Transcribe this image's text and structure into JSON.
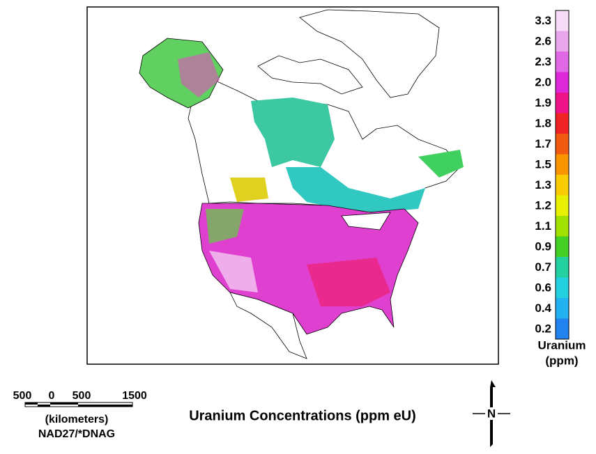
{
  "legend": {
    "title": "Uranium",
    "unit": "(ppm)",
    "bands": [
      {
        "label": "3.3",
        "color": "#f6dcf6"
      },
      {
        "label": "2.6",
        "color": "#eaa6ea"
      },
      {
        "label": "2.3",
        "color": "#e068e4"
      },
      {
        "label": "2.0",
        "color": "#dc28d8"
      },
      {
        "label": "1.9",
        "color": "#ee1488"
      },
      {
        "label": "1.8",
        "color": "#f02424"
      },
      {
        "label": "1.7",
        "color": "#f25a12"
      },
      {
        "label": "1.5",
        "color": "#f89400"
      },
      {
        "label": "1.3",
        "color": "#f8cc00"
      },
      {
        "label": "1.2",
        "color": "#e6f000"
      },
      {
        "label": "1.1",
        "color": "#a2e000"
      },
      {
        "label": "0.9",
        "color": "#44d024"
      },
      {
        "label": "0.7",
        "color": "#22d0a0"
      },
      {
        "label": "0.6",
        "color": "#22d0e0"
      },
      {
        "label": "0.4",
        "color": "#22b2f0"
      },
      {
        "label": "0.2",
        "color": "#2282ee"
      }
    ]
  },
  "scale_bar": {
    "ticks": [
      "500",
      "0",
      "500",
      "1500"
    ],
    "unit": "(kilometers)",
    "datum": "NAD27/*DNAG"
  },
  "title": "Uranium Concentrations (ppm eU)",
  "north": "N"
}
